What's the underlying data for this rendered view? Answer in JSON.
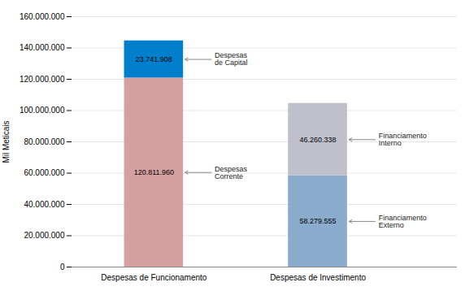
{
  "chart_data": {
    "type": "bar",
    "stacked": true,
    "categories": [
      "Despesas de Funcionamento",
      "Despesas de Investimento"
    ],
    "series": [
      {
        "colors": [
          "#d4a0a0",
          "#8aabcc"
        ],
        "values": [
          120811960,
          58279555
        ],
        "value_labels": [
          "120.811.960",
          "58.279.555"
        ],
        "annotations": [
          "Despesas\nCorrente",
          "Financiamento\nExterno"
        ]
      },
      {
        "colors": [
          "#0080cc",
          "#c0c0cc"
        ],
        "values": [
          23741908,
          46260338
        ],
        "value_labels": [
          "23.741.908",
          "46.260.338"
        ],
        "annotations": [
          "Despesas\nde Capital",
          "Financiamento\nInterno"
        ]
      }
    ],
    "ylabel": "Mil Meticais",
    "ylim": [
      0,
      160000000
    ],
    "yticks": [
      0,
      {
        "value": 20000000,
        "label": "20.000.000"
      },
      {
        "value": 40000000,
        "label": "40.000.000"
      },
      {
        "value": 60000000,
        "label": "60.000.000"
      },
      {
        "value": 80000000,
        "label": "80.000.000"
      },
      {
        "value": 100000000,
        "label": "100.000.000"
      },
      {
        "value": 120000000,
        "label": "120.000.000"
      },
      {
        "value": 140000000,
        "label": "140.000.000"
      },
      {
        "value": 160000000,
        "label": "160.000.000"
      }
    ],
    "grid": true,
    "data_labels": true
  }
}
